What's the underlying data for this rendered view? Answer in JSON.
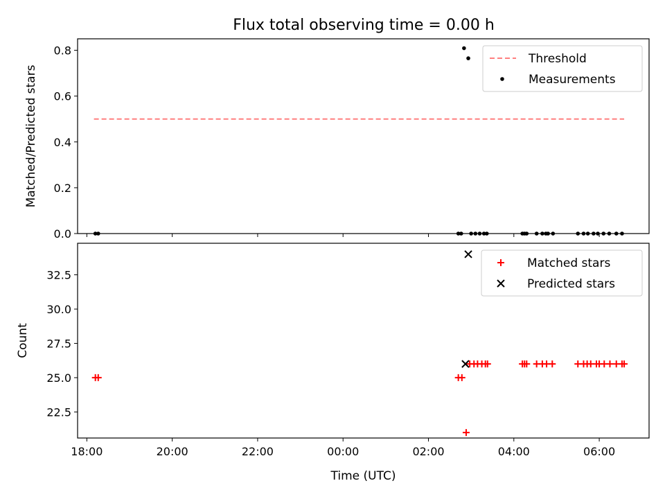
{
  "chart_data": [
    {
      "type": "scatter",
      "title": "Flux total observing time = 0.00 h",
      "xlabel": "",
      "ylabel": "Matched/Predicted stars",
      "xlim": [
        "2000-01-01T17:47",
        "2000-01-02T07:10"
      ],
      "ylim": [
        0,
        0.85
      ],
      "x_tick_labels": [
        "18:00",
        "20:00",
        "22:00",
        "00:00",
        "02:00",
        "04:00",
        "06:00"
      ],
      "y_ticks": [
        0.0,
        0.2,
        0.4,
        0.6,
        0.8
      ],
      "y_tick_labels": [
        "0.0",
        "0.2",
        "0.4",
        "0.6",
        "0.8"
      ],
      "legend": [
        "Threshold",
        "Measurements"
      ],
      "legend_position": "upper right",
      "threshold": {
        "name": "Threshold",
        "color": "#ff7f7f",
        "y": 0.5,
        "x_start": "2000-01-01T18:10",
        "x_end": "2000-01-02T06:35"
      },
      "series": [
        {
          "name": "Measurements",
          "color": "#000000",
          "marker": "dot",
          "points": [
            [
              "2000-01-01T18:12",
              0
            ],
            [
              "2000-01-01T18:16",
              0
            ],
            [
              "2000-01-02T02:42",
              0
            ],
            [
              "2000-01-02T02:46",
              0
            ],
            [
              "2000-01-02T02:50",
              0.809
            ],
            [
              "2000-01-02T02:56",
              0.765
            ],
            [
              "2000-01-02T03:00",
              0
            ],
            [
              "2000-01-02T03:06",
              0
            ],
            [
              "2000-01-02T03:12",
              0
            ],
            [
              "2000-01-02T03:18",
              0
            ],
            [
              "2000-01-02T03:22",
              0
            ],
            [
              "2000-01-02T04:12",
              0
            ],
            [
              "2000-01-02T04:15",
              0
            ],
            [
              "2000-01-02T04:18",
              0
            ],
            [
              "2000-01-02T04:32",
              0
            ],
            [
              "2000-01-02T04:40",
              0
            ],
            [
              "2000-01-02T04:45",
              0
            ],
            [
              "2000-01-02T04:48",
              0
            ],
            [
              "2000-01-02T04:55",
              0
            ],
            [
              "2000-01-02T05:30",
              0
            ],
            [
              "2000-01-02T05:38",
              0
            ],
            [
              "2000-01-02T05:44",
              0
            ],
            [
              "2000-01-02T05:52",
              0
            ],
            [
              "2000-01-02T05:58",
              0
            ],
            [
              "2000-01-02T06:06",
              0
            ],
            [
              "2000-01-02T06:14",
              0
            ],
            [
              "2000-01-02T06:24",
              0
            ],
            [
              "2000-01-02T06:32",
              0
            ]
          ]
        }
      ]
    },
    {
      "type": "scatter",
      "title": "",
      "xlabel": "Time (UTC)",
      "ylabel": "Count",
      "xlim": [
        "2000-01-01T17:47",
        "2000-01-02T07:10"
      ],
      "ylim": [
        20.6,
        34.8
      ],
      "x_tick_labels": [
        "18:00",
        "20:00",
        "22:00",
        "00:00",
        "02:00",
        "04:00",
        "06:00"
      ],
      "y_ticks": [
        22.5,
        25.0,
        27.5,
        30.0,
        32.5
      ],
      "y_tick_labels": [
        "22.5",
        "25.0",
        "27.5",
        "30.0",
        "32.5"
      ],
      "legend": [
        "Matched stars",
        "Predicted stars"
      ],
      "legend_position": "upper right",
      "series": [
        {
          "name": "Matched stars",
          "color": "#ff0000",
          "marker": "plus",
          "points": [
            [
              "2000-01-01T18:12",
              25
            ],
            [
              "2000-01-01T18:16",
              25
            ],
            [
              "2000-01-02T02:42",
              25
            ],
            [
              "2000-01-02T02:47",
              25
            ],
            [
              "2000-01-02T02:53",
              21
            ],
            [
              "2000-01-02T02:58",
              26
            ],
            [
              "2000-01-02T03:04",
              26
            ],
            [
              "2000-01-02T03:09",
              26
            ],
            [
              "2000-01-02T03:15",
              26
            ],
            [
              "2000-01-02T03:20",
              26
            ],
            [
              "2000-01-02T03:23",
              26
            ],
            [
              "2000-01-02T04:12",
              26
            ],
            [
              "2000-01-02T04:15",
              26
            ],
            [
              "2000-01-02T04:18",
              26
            ],
            [
              "2000-01-02T04:32",
              26
            ],
            [
              "2000-01-02T04:40",
              26
            ],
            [
              "2000-01-02T04:46",
              26
            ],
            [
              "2000-01-02T04:54",
              26
            ],
            [
              "2000-01-02T05:30",
              26
            ],
            [
              "2000-01-02T05:38",
              26
            ],
            [
              "2000-01-02T05:43",
              26
            ],
            [
              "2000-01-02T05:48",
              26
            ],
            [
              "2000-01-02T05:56",
              26
            ],
            [
              "2000-01-02T06:00",
              26
            ],
            [
              "2000-01-02T06:07",
              26
            ],
            [
              "2000-01-02T06:15",
              26
            ],
            [
              "2000-01-02T06:24",
              26
            ],
            [
              "2000-01-02T06:32",
              26
            ],
            [
              "2000-01-02T06:35",
              26
            ]
          ]
        },
        {
          "name": "Predicted stars",
          "color": "#000000",
          "marker": "x",
          "points": [
            [
              "2000-01-02T02:52",
              26
            ],
            [
              "2000-01-02T02:56",
              34
            ]
          ]
        }
      ]
    }
  ]
}
